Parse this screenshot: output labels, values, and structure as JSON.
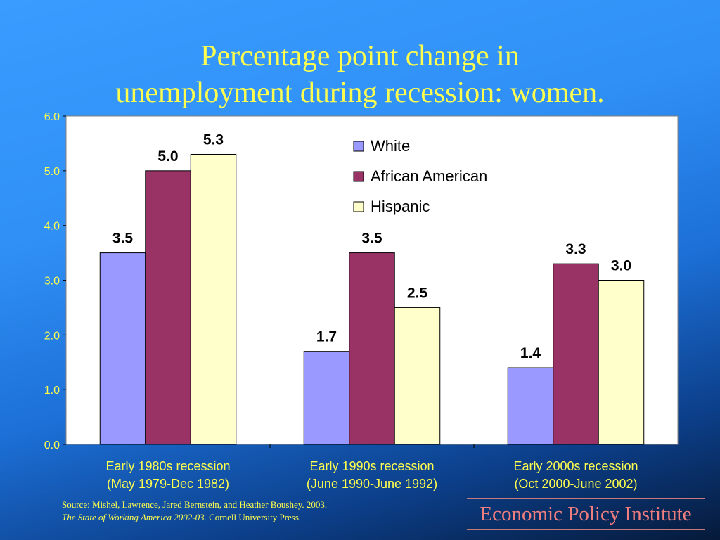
{
  "slide": {
    "title_line1": "Percentage point change in",
    "title_line2": "unemployment during recession: women.",
    "source_line1": "Source:  Mishel, Lawrence, Jared Bernstein, and Heather Boushey. 2003.",
    "source_line2_italic": "The State of Working America 2002-03.",
    "source_line2_rest": " Cornell University Press.",
    "logo_text": "Economic Policy Institute"
  },
  "chart_data": {
    "type": "bar",
    "title": "Percentage point change in unemployment during recession: women.",
    "categories": [
      [
        "Early 1980s recession",
        "(May 1979-Dec 1982)"
      ],
      [
        "Early 1990s recession",
        "(June 1990-June 1992)"
      ],
      [
        "Early 2000s recession",
        "(Oct 2000-June 2002)"
      ]
    ],
    "series": [
      {
        "name": "White",
        "color": "#9999ff",
        "values": [
          3.5,
          1.7,
          1.4
        ],
        "labels": [
          "3.5",
          "1.7",
          "1.4"
        ]
      },
      {
        "name": "African American",
        "color": "#993366",
        "values": [
          5.0,
          3.5,
          3.3
        ],
        "labels": [
          "5.0",
          "3.5",
          "3.3"
        ]
      },
      {
        "name": "Hispanic",
        "color": "#ffffcc",
        "values": [
          5.3,
          2.5,
          3.0
        ],
        "labels": [
          "5.3",
          "2.5",
          "3.0"
        ]
      }
    ],
    "ylim": [
      0,
      6
    ],
    "yticks": [
      "0.0",
      "1.0",
      "2.0",
      "3.0",
      "4.0",
      "5.0",
      "6.0"
    ],
    "xlabel": "",
    "ylabel": "",
    "grid": false,
    "legend_position": "top-right",
    "axis_text_color": "#ffff4d",
    "plot_background": "#ffffff"
  }
}
